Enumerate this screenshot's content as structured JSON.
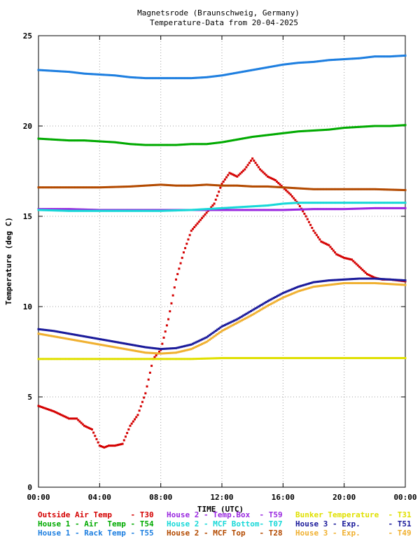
{
  "chart_data": {
    "type": "scatter",
    "title": [
      "Magnetsrode (Braunschweig, Germany)",
      "Temperature-Data from 20-04-2025"
    ],
    "xlabel": "TIME (UTC)",
    "ylabel": "Temperature (deg C)",
    "xlim": [
      0,
      24
    ],
    "ylim": [
      0,
      25
    ],
    "xticks": [
      {
        "value": 0,
        "label": "00:00"
      },
      {
        "value": 4,
        "label": "04:00"
      },
      {
        "value": 8,
        "label": "08:00"
      },
      {
        "value": 12,
        "label": "12:00"
      },
      {
        "value": 16,
        "label": "16:00"
      },
      {
        "value": 20,
        "label": "20:00"
      },
      {
        "value": 24,
        "label": "00:00"
      }
    ],
    "yticks": [
      {
        "value": 0,
        "label": "0"
      },
      {
        "value": 5,
        "label": "5"
      },
      {
        "value": 10,
        "label": "10"
      },
      {
        "value": 15,
        "label": "15"
      },
      {
        "value": 20,
        "label": "20"
      },
      {
        "value": 25,
        "label": "25"
      }
    ],
    "grid": true,
    "legend_position": "bottom",
    "series": [
      {
        "name": "Outside Air Temp    - T30",
        "color": "#d40000",
        "x": [
          0,
          1,
          1.5,
          2,
          2.5,
          3,
          3.5,
          4,
          4.3,
          4.6,
          5,
          5.5,
          6,
          6.5,
          7,
          7.5,
          8,
          8.5,
          9,
          9.5,
          10,
          10.5,
          11,
          11.5,
          12,
          12.5,
          13,
          13.5,
          14,
          14.5,
          15,
          15.5,
          16,
          16.5,
          17,
          17.5,
          18,
          18.5,
          19,
          19.5,
          20,
          20.5,
          21,
          21.5,
          22,
          22.5,
          23,
          23.5,
          24
        ],
        "y": [
          4.5,
          4.2,
          4.0,
          3.8,
          3.8,
          3.4,
          3.2,
          2.3,
          2.2,
          2.3,
          2.3,
          2.4,
          3.4,
          4.0,
          5.2,
          7.1,
          7.6,
          9.3,
          11.5,
          13.0,
          14.2,
          14.7,
          15.2,
          15.7,
          16.8,
          17.4,
          17.2,
          17.6,
          18.2,
          17.6,
          17.2,
          17.0,
          16.6,
          16.2,
          15.7,
          15.0,
          14.2,
          13.6,
          13.4,
          12.9,
          12.7,
          12.6,
          12.2,
          11.8,
          11.6,
          11.5,
          11.5,
          11.45,
          11.4
        ]
      },
      {
        "name": "House 1 - Air  Temp - T54",
        "color": "#00aa00",
        "x": [
          0,
          1,
          2,
          3,
          4,
          5,
          6,
          7,
          8,
          9,
          10,
          11,
          12,
          13,
          14,
          15,
          16,
          17,
          18,
          19,
          20,
          21,
          22,
          23,
          24
        ],
        "y": [
          19.3,
          19.25,
          19.2,
          19.2,
          19.15,
          19.1,
          19.0,
          18.95,
          18.95,
          18.95,
          19.0,
          19.0,
          19.1,
          19.25,
          19.4,
          19.5,
          19.6,
          19.7,
          19.75,
          19.8,
          19.9,
          19.95,
          20.0,
          20.0,
          20.05
        ]
      },
      {
        "name": "House 1 - Rack Temp - T55",
        "color": "#1e7fe0",
        "x": [
          0,
          1,
          2,
          3,
          4,
          5,
          6,
          7,
          8,
          9,
          10,
          11,
          12,
          13,
          14,
          15,
          16,
          17,
          18,
          19,
          20,
          21,
          22,
          23,
          24
        ],
        "y": [
          23.1,
          23.05,
          23.0,
          22.9,
          22.85,
          22.8,
          22.7,
          22.65,
          22.65,
          22.65,
          22.65,
          22.7,
          22.8,
          22.95,
          23.1,
          23.25,
          23.4,
          23.5,
          23.55,
          23.65,
          23.7,
          23.75,
          23.85,
          23.85,
          23.9
        ]
      },
      {
        "name": "House 2 - Temp.Box  - T59",
        "color": "#9a28e0",
        "x": [
          0,
          2,
          4,
          6,
          8,
          10,
          12,
          14,
          16,
          18,
          20,
          22,
          24
        ],
        "y": [
          15.4,
          15.4,
          15.35,
          15.35,
          15.35,
          15.35,
          15.35,
          15.35,
          15.35,
          15.4,
          15.4,
          15.45,
          15.45
        ]
      },
      {
        "name": "House 2 - MCF Bottom- T07",
        "color": "#18d8d8",
        "x": [
          0,
          2,
          4,
          6,
          8,
          10,
          11,
          12,
          13,
          14,
          15,
          16,
          17,
          18,
          19,
          20,
          22,
          24
        ],
        "y": [
          15.35,
          15.3,
          15.3,
          15.3,
          15.3,
          15.35,
          15.4,
          15.45,
          15.5,
          15.55,
          15.6,
          15.7,
          15.75,
          15.75,
          15.75,
          15.75,
          15.75,
          15.75
        ]
      },
      {
        "name": "House 2 - MCF Top   - T28",
        "color": "#b34a00",
        "x": [
          0,
          2,
          4,
          6,
          7,
          8,
          9,
          10,
          11,
          12,
          13,
          14,
          15,
          16,
          17,
          18,
          20,
          22,
          24
        ],
        "y": [
          16.6,
          16.6,
          16.6,
          16.65,
          16.7,
          16.75,
          16.7,
          16.7,
          16.75,
          16.7,
          16.7,
          16.65,
          16.65,
          16.6,
          16.55,
          16.5,
          16.5,
          16.5,
          16.45
        ]
      },
      {
        "name": "Bunker Temperature  - T31",
        "color": "#e0e000",
        "x": [
          0,
          2,
          4,
          6,
          8,
          10,
          12,
          14,
          16,
          18,
          20,
          22,
          24
        ],
        "y": [
          7.1,
          7.1,
          7.1,
          7.1,
          7.1,
          7.1,
          7.15,
          7.15,
          7.15,
          7.15,
          7.15,
          7.15,
          7.15
        ]
      },
      {
        "name": "House 3 - Exp.      - T51",
        "color": "#1a1a9a",
        "x": [
          0,
          1,
          2,
          3,
          4,
          5,
          6,
          7,
          8,
          9,
          10,
          11,
          12,
          13,
          14,
          15,
          16,
          17,
          18,
          19,
          20,
          21,
          22,
          23,
          24
        ],
        "y": [
          8.75,
          8.65,
          8.5,
          8.35,
          8.2,
          8.05,
          7.9,
          7.75,
          7.65,
          7.7,
          7.9,
          8.3,
          8.9,
          9.3,
          9.8,
          10.3,
          10.75,
          11.1,
          11.35,
          11.45,
          11.5,
          11.55,
          11.55,
          11.5,
          11.45
        ]
      },
      {
        "name": "House 3 - Exp.      - T49",
        "color": "#f0b030",
        "x": [
          0,
          1,
          2,
          3,
          4,
          5,
          6,
          7,
          8,
          9,
          10,
          11,
          12,
          13,
          14,
          15,
          16,
          17,
          18,
          19,
          20,
          21,
          22,
          23,
          24
        ],
        "y": [
          8.5,
          8.35,
          8.2,
          8.05,
          7.9,
          7.75,
          7.6,
          7.45,
          7.4,
          7.45,
          7.65,
          8.05,
          8.65,
          9.1,
          9.55,
          10.05,
          10.5,
          10.85,
          11.1,
          11.2,
          11.3,
          11.3,
          11.3,
          11.25,
          11.2
        ]
      }
    ]
  }
}
